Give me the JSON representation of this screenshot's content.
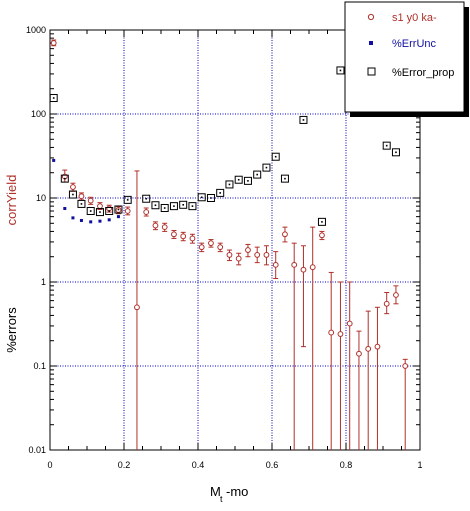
{
  "chart_data": {
    "type": "scatter",
    "title": "",
    "xlabel": "M",
    "xlabel_sub": "t",
    "xlabel_suffix": "-mo",
    "ylabel_primary": "corrYield",
    "ylabel_secondary": "%errors",
    "xlim": [
      0,
      1.0
    ],
    "ylim": [
      0.01,
      1000
    ],
    "yscale": "log",
    "grid": true,
    "legend_position": "top-right",
    "xticks": [
      "0",
      "0.2",
      "0.4",
      "0.6",
      "0.8",
      "1"
    ],
    "yticks": [
      "0.01",
      "0.1",
      "1",
      "10",
      "100",
      "1000"
    ],
    "colors": {
      "yield": "#b0302a",
      "errunc": "#1010a0",
      "errprop": "#000000",
      "grid": "#0000c0"
    },
    "series": [
      {
        "name": "s1 y0 ka-",
        "marker": "open-circle",
        "points": [
          {
            "x": 0.01,
            "y": 700,
            "lo": 650,
            "hi": 760
          },
          {
            "x": 0.04,
            "y": 18.0,
            "lo": 15.5,
            "hi": 21.5
          },
          {
            "x": 0.062,
            "y": 13.5,
            "lo": 12.0,
            "hi": 15.0
          },
          {
            "x": 0.085,
            "y": 10.5,
            "lo": 9.5,
            "hi": 11.5
          },
          {
            "x": 0.11,
            "y": 9.3,
            "lo": 8.4,
            "hi": 10.2
          },
          {
            "x": 0.135,
            "y": 8.0,
            "lo": 7.3,
            "hi": 8.8
          },
          {
            "x": 0.16,
            "y": 7.5,
            "lo": 6.8,
            "hi": 8.2
          },
          {
            "x": 0.185,
            "y": 7.2,
            "lo": 6.5,
            "hi": 7.9
          },
          {
            "x": 0.21,
            "y": 7.0,
            "lo": 6.3,
            "hi": 7.8
          },
          {
            "x": 0.235,
            "y": 0.5,
            "lo": 0.01,
            "hi": 21
          },
          {
            "x": 0.26,
            "y": 6.8,
            "lo": 6.1,
            "hi": 7.6
          },
          {
            "x": 0.285,
            "y": 4.7,
            "lo": 4.2,
            "hi": 5.2
          },
          {
            "x": 0.31,
            "y": 4.5,
            "lo": 4.0,
            "hi": 5.0
          },
          {
            "x": 0.335,
            "y": 3.7,
            "lo": 3.3,
            "hi": 4.1
          },
          {
            "x": 0.36,
            "y": 3.5,
            "lo": 3.1,
            "hi": 3.9
          },
          {
            "x": 0.385,
            "y": 3.3,
            "lo": 2.9,
            "hi": 3.7
          },
          {
            "x": 0.41,
            "y": 2.6,
            "lo": 2.3,
            "hi": 2.9
          },
          {
            "x": 0.435,
            "y": 2.9,
            "lo": 2.6,
            "hi": 3.2
          },
          {
            "x": 0.46,
            "y": 2.6,
            "lo": 2.3,
            "hi": 2.9
          },
          {
            "x": 0.485,
            "y": 2.1,
            "lo": 1.8,
            "hi": 2.4
          },
          {
            "x": 0.51,
            "y": 1.9,
            "lo": 1.6,
            "hi": 2.2
          },
          {
            "x": 0.535,
            "y": 2.4,
            "lo": 2.0,
            "hi": 2.8
          },
          {
            "x": 0.56,
            "y": 2.1,
            "lo": 1.7,
            "hi": 2.6
          },
          {
            "x": 0.585,
            "y": 2.1,
            "lo": 1.6,
            "hi": 2.7
          },
          {
            "x": 0.61,
            "y": 1.6,
            "lo": 1.1,
            "hi": 2.3
          },
          {
            "x": 0.635,
            "y": 3.7,
            "lo": 3.0,
            "hi": 4.5
          },
          {
            "x": 0.66,
            "y": 1.6,
            "lo": 0.01,
            "hi": 2.9
          },
          {
            "x": 0.685,
            "y": 1.4,
            "lo": 0.17,
            "hi": 2.7
          },
          {
            "x": 0.71,
            "y": 1.5,
            "lo": 0.01,
            "hi": 4.5
          },
          {
            "x": 0.735,
            "y": 3.6,
            "lo": 3.2,
            "hi": 4.0
          },
          {
            "x": 0.76,
            "y": 0.25,
            "lo": 0.01,
            "hi": 1.3
          },
          {
            "x": 0.785,
            "y": 0.24,
            "lo": 0.01,
            "hi": 1.0
          },
          {
            "x": 0.81,
            "y": 0.32,
            "lo": 0.01,
            "hi": 1.0
          },
          {
            "x": 0.835,
            "y": 0.14,
            "lo": 0.01,
            "hi": 0.26
          },
          {
            "x": 0.86,
            "y": 0.16,
            "lo": 0.01,
            "hi": 0.45
          },
          {
            "x": 0.885,
            "y": 0.17,
            "lo": 0.01,
            "hi": 0.5
          },
          {
            "x": 0.91,
            "y": 0.55,
            "lo": 0.42,
            "hi": 0.75
          },
          {
            "x": 0.935,
            "y": 0.7,
            "lo": 0.55,
            "hi": 0.9
          },
          {
            "x": 0.96,
            "y": 0.1,
            "lo": 0.01,
            "hi": 0.12
          }
        ]
      },
      {
        "name": "%ErrUnc",
        "marker": "filled-square",
        "points": [
          {
            "x": 0.01,
            "y": 28
          },
          {
            "x": 0.04,
            "y": 7.5
          },
          {
            "x": 0.062,
            "y": 5.8
          },
          {
            "x": 0.085,
            "y": 5.4
          },
          {
            "x": 0.11,
            "y": 5.2
          },
          {
            "x": 0.135,
            "y": 5.3
          },
          {
            "x": 0.16,
            "y": 5.5
          },
          {
            "x": 0.185,
            "y": 6.0
          }
        ]
      },
      {
        "name": "%Error_prop",
        "marker": "open-square",
        "points": [
          {
            "x": 0.01,
            "y": 155
          },
          {
            "x": 0.04,
            "y": 17
          },
          {
            "x": 0.062,
            "y": 11
          },
          {
            "x": 0.085,
            "y": 8.5
          },
          {
            "x": 0.11,
            "y": 7.0
          },
          {
            "x": 0.135,
            "y": 6.8
          },
          {
            "x": 0.16,
            "y": 7.0
          },
          {
            "x": 0.185,
            "y": 7.3
          },
          {
            "x": 0.21,
            "y": 9.5
          },
          {
            "x": 0.26,
            "y": 9.8
          },
          {
            "x": 0.285,
            "y": 8.2
          },
          {
            "x": 0.31,
            "y": 7.6
          },
          {
            "x": 0.335,
            "y": 8.0
          },
          {
            "x": 0.36,
            "y": 8.3
          },
          {
            "x": 0.385,
            "y": 8.0
          },
          {
            "x": 0.41,
            "y": 10.2
          },
          {
            "x": 0.435,
            "y": 10.0
          },
          {
            "x": 0.46,
            "y": 11.5
          },
          {
            "x": 0.485,
            "y": 14.5
          },
          {
            "x": 0.51,
            "y": 16.5
          },
          {
            "x": 0.535,
            "y": 16.0
          },
          {
            "x": 0.56,
            "y": 19.0
          },
          {
            "x": 0.585,
            "y": 23.0
          },
          {
            "x": 0.61,
            "y": 31.0
          },
          {
            "x": 0.635,
            "y": 17.0
          },
          {
            "x": 0.685,
            "y": 85.0
          },
          {
            "x": 0.735,
            "y": 5.2
          },
          {
            "x": 0.785,
            "y": 330
          },
          {
            "x": 0.81,
            "y": 195
          },
          {
            "x": 0.885,
            "y": 180
          },
          {
            "x": 0.91,
            "y": 42
          },
          {
            "x": 0.935,
            "y": 35
          }
        ]
      }
    ]
  }
}
